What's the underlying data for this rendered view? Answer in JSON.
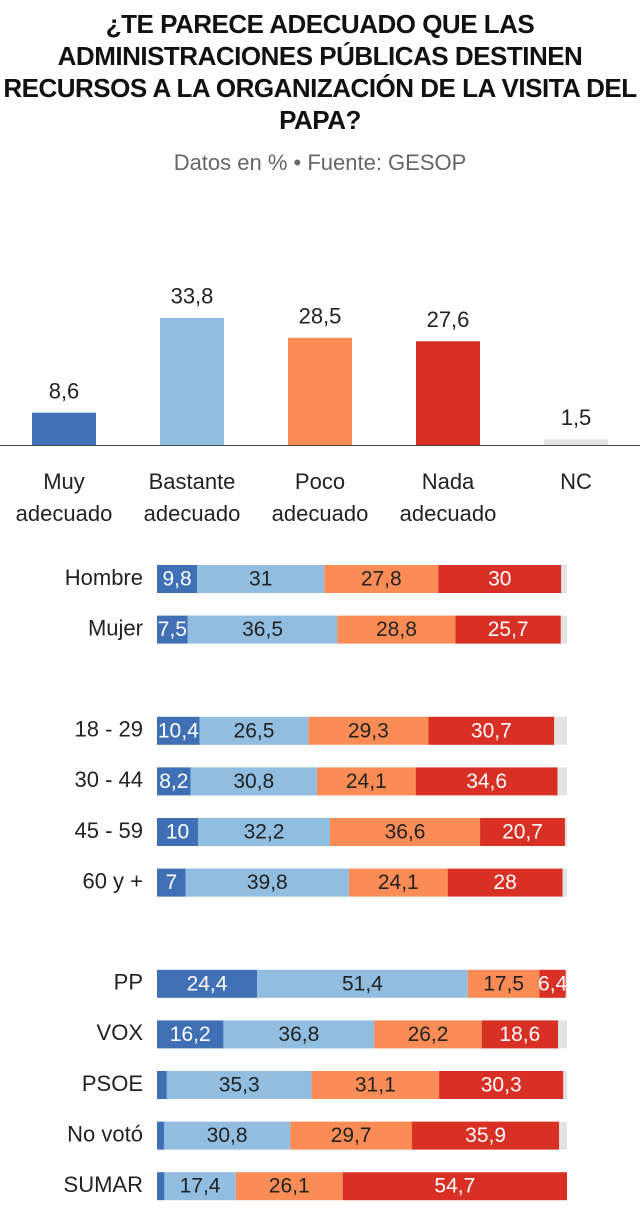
{
  "chart_data": [
    {
      "type": "bar",
      "title": "¿TE PARECE ADECUADO QUE LAS ADMINISTRACIONES PÚBLICAS DESTINEN RECURSOS A LA ORGANIZACIÓN DE LA VISITA DEL PAPA?",
      "subtitle": "Datos en % • Fuente: GESOP",
      "categories": [
        "Muy adecuado",
        "Bastante adecuado",
        "Poco adecuado",
        "Nada adecuado",
        "NC"
      ],
      "values": [
        8.6,
        33.8,
        28.5,
        27.6,
        1.5
      ],
      "value_labels": [
        "8,6",
        "33,8",
        "28,5",
        "27,6",
        "1,5"
      ],
      "colors": [
        "#3f70b5",
        "#90bde0",
        "#fb8c55",
        "#d93026",
        "#e3e3e3"
      ]
    },
    {
      "type": "stacked-hbar",
      "categories": [
        "Hombre",
        "Mujer",
        "18 - 29",
        "30 - 44",
        "45 - 59",
        "60 y +",
        "PP",
        "VOX",
        "PSOE",
        "No votó",
        "SUMAR"
      ],
      "series": [
        {
          "color": "#3f70b5",
          "values": [
            9.8,
            7.5,
            10.4,
            8.2,
            10,
            7,
            24.4,
            16.2,
            2.4,
            1.7,
            1.8
          ],
          "value_labels": [
            "9,8",
            "7,5",
            "10,4",
            "8,2",
            "10",
            "7",
            "24,4",
            "16,2",
            null,
            null,
            null
          ]
        },
        {
          "color": "#90bde0",
          "values": [
            31,
            36.5,
            26.5,
            30.8,
            32.2,
            39.8,
            51.4,
            36.8,
            35.3,
            30.8,
            17.4
          ],
          "value_labels": [
            "31",
            "36,5",
            "26,5",
            "30,8",
            "32,2",
            "39,8",
            "51,4",
            "36,8",
            "35,3",
            "30,8",
            "17,4"
          ]
        },
        {
          "color": "#fb8c55",
          "values": [
            27.8,
            28.8,
            29.3,
            24.1,
            36.6,
            24.1,
            17.5,
            26.2,
            31.1,
            29.7,
            26.1
          ],
          "value_labels": [
            "27,8",
            "28,8",
            "29,3",
            "24,1",
            "36,6",
            "24,1",
            "17,5",
            "26,2",
            "31,1",
            "29,7",
            "26,1"
          ]
        },
        {
          "color": "#d93026",
          "values": [
            30,
            25.7,
            30.7,
            34.6,
            20.7,
            28,
            6.4,
            18.6,
            30.3,
            35.9,
            54.7
          ],
          "value_labels": [
            "30",
            "25,7",
            "30,7",
            "34,6",
            "20,7",
            "28",
            "6,4",
            "18,6",
            "30,3",
            "35,9",
            "54,7"
          ]
        },
        {
          "color": "#e3e3e3",
          "values": [
            1.4,
            1.5,
            3.1,
            2.3,
            0.5,
            1.1,
            0.3,
            2.2,
            0.9,
            1.9,
            0
          ],
          "value_labels": [
            null,
            null,
            null,
            null,
            null,
            null,
            null,
            null,
            null,
            null,
            null
          ]
        }
      ]
    }
  ]
}
